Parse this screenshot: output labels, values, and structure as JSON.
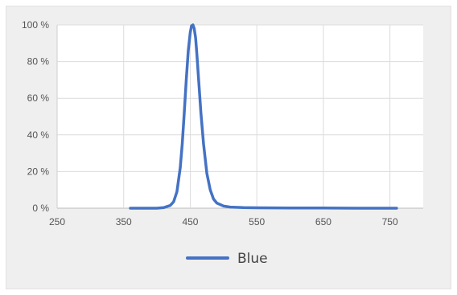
{
  "chart_data": {
    "type": "line",
    "title": "",
    "xlabel": "",
    "ylabel": "",
    "xlim": [
      250,
      800
    ],
    "ylim": [
      0,
      100
    ],
    "xticks": [
      250,
      350,
      450,
      550,
      650,
      750
    ],
    "xtick_labels": [
      "250",
      "350",
      "450",
      "550",
      "650",
      "750"
    ],
    "yticks": [
      0,
      20,
      40,
      60,
      80,
      100
    ],
    "ytick_labels": [
      "0 %",
      "20 %",
      "40 %",
      "60 %",
      "80 %",
      "100 %"
    ],
    "grid": "vertical and horizontal",
    "legend": "bottom",
    "series": [
      {
        "name": "Blue",
        "color": "#4472c4",
        "x": [
          360,
          400,
          410,
          420,
          425,
          430,
          435,
          438,
          441,
          444,
          447,
          450,
          452,
          454,
          456,
          458,
          460,
          463,
          466,
          470,
          475,
          480,
          485,
          490,
          500,
          510,
          530,
          550,
          600,
          650,
          700,
          760
        ],
        "y": [
          0,
          0,
          0.3,
          1.5,
          3.5,
          9,
          22,
          35,
          52,
          70,
          86,
          96,
          99.5,
          100,
          98,
          93,
          84,
          68,
          52,
          35,
          19,
          10,
          5,
          2.8,
          1.2,
          0.6,
          0.3,
          0.2,
          0.1,
          0.1,
          0,
          0
        ]
      }
    ]
  }
}
